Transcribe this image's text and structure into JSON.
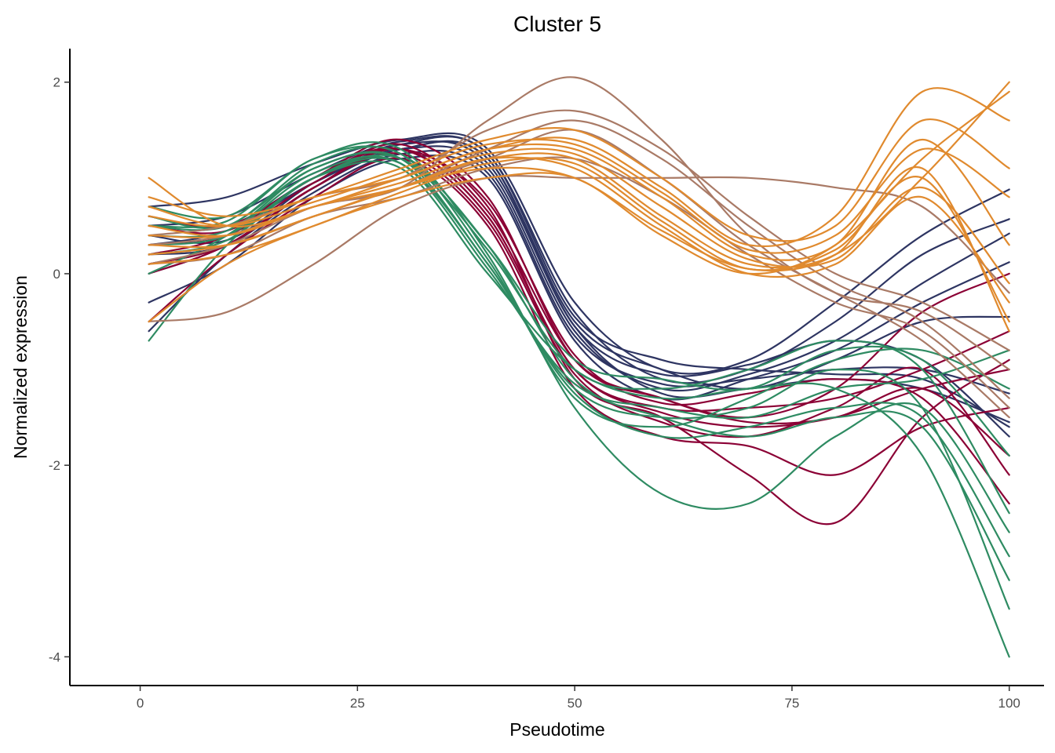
{
  "chart_data": {
    "type": "line",
    "title": "Cluster 5",
    "xlabel": "Pseudotime",
    "ylabel": "Normalized expression",
    "xlim": [
      -8,
      104
    ],
    "ylim": [
      -4.3,
      2.35
    ],
    "xticks": [
      0,
      25,
      50,
      75,
      100
    ],
    "yticks": [
      2,
      0,
      -2,
      -4
    ],
    "xtick_labels": [
      "0",
      "25",
      "50",
      "75",
      "100"
    ],
    "ytick_labels": [
      "2",
      "0",
      "-2",
      "-4"
    ],
    "grid": false,
    "legend": "none",
    "x": [
      1,
      10,
      20,
      30,
      40,
      50,
      60,
      70,
      80,
      90,
      100
    ],
    "groups": [
      {
        "name": "group-navy",
        "color": "#2E3562",
        "series": [
          {
            "name": "navy-1",
            "values": [
              0.7,
              0.8,
              1.15,
              1.4,
              1.3,
              -0.3,
              -1.0,
              -0.9,
              -0.3,
              0.4,
              0.88
            ]
          },
          {
            "name": "navy-2",
            "values": [
              0.5,
              0.6,
              1.05,
              1.38,
              1.25,
              -0.4,
              -1.1,
              -1.0,
              -0.5,
              0.2,
              0.57
            ]
          },
          {
            "name": "navy-3",
            "values": [
              0.3,
              0.45,
              0.95,
              1.3,
              1.1,
              -0.6,
              -1.2,
              -1.05,
              -0.7,
              -0.1,
              0.42
            ]
          },
          {
            "name": "navy-4",
            "values": [
              -0.3,
              0.1,
              0.8,
              1.2,
              1.0,
              -0.7,
              -1.3,
              -1.1,
              -0.8,
              -0.3,
              0.12
            ]
          },
          {
            "name": "navy-5",
            "values": [
              0.2,
              0.3,
              0.9,
              1.3,
              1.2,
              -0.5,
              -1.0,
              -1.2,
              -0.9,
              -0.5,
              -0.45
            ]
          },
          {
            "name": "navy-6",
            "values": [
              -0.6,
              0.2,
              0.85,
              1.25,
              1.05,
              -0.65,
              -1.15,
              -1.1,
              -1.0,
              -1.0,
              -1.25
            ]
          },
          {
            "name": "navy-7",
            "values": [
              0.6,
              0.5,
              1.0,
              1.35,
              1.15,
              -0.55,
              -1.25,
              -1.2,
              -1.1,
              -1.2,
              -1.55
            ]
          },
          {
            "name": "navy-8",
            "values": [
              0.0,
              0.3,
              0.9,
              1.3,
              1.2,
              -0.55,
              -1.05,
              -0.95,
              -0.7,
              -0.9,
              -1.7
            ]
          },
          {
            "name": "navy-9",
            "values": [
              0.4,
              0.35,
              0.95,
              1.35,
              1.25,
              -0.45,
              -0.9,
              -1.0,
              -1.05,
              -1.1,
              -1.6
            ]
          }
        ]
      },
      {
        "name": "group-crimson",
        "color": "#8B0035",
        "series": [
          {
            "name": "crimson-1",
            "values": [
              0.6,
              0.5,
              1.0,
              1.4,
              0.8,
              -0.9,
              -1.3,
              -1.5,
              -1.2,
              -0.4,
              0.0
            ]
          },
          {
            "name": "crimson-2",
            "values": [
              0.2,
              0.4,
              1.0,
              1.3,
              0.6,
              -1.0,
              -1.4,
              -1.4,
              -1.3,
              -1.0,
              -0.6
            ]
          },
          {
            "name": "crimson-3",
            "values": [
              0.1,
              0.3,
              0.9,
              1.3,
              0.7,
              -1.1,
              -1.5,
              -2.1,
              -2.6,
              -1.5,
              -0.9
            ]
          },
          {
            "name": "crimson-4",
            "values": [
              -0.5,
              0.2,
              0.8,
              1.2,
              0.5,
              -1.2,
              -1.7,
              -1.8,
              -2.1,
              -1.6,
              -1.4
            ]
          },
          {
            "name": "crimson-5",
            "values": [
              0.3,
              0.4,
              0.95,
              1.35,
              0.65,
              -0.9,
              -1.3,
              -1.55,
              -1.5,
              -1.2,
              -1.9
            ]
          },
          {
            "name": "crimson-6",
            "values": [
              0.0,
              0.3,
              0.9,
              1.25,
              0.55,
              -1.05,
              -1.55,
              -1.7,
              -1.4,
              -1.0,
              -2.1
            ]
          },
          {
            "name": "crimson-7",
            "values": [
              0.5,
              0.45,
              1.0,
              1.3,
              0.75,
              -0.85,
              -1.35,
              -1.25,
              -1.1,
              -1.3,
              -2.4
            ]
          },
          {
            "name": "crimson-8",
            "values": [
              0.1,
              0.3,
              0.9,
              1.3,
              0.6,
              -1.0,
              -1.45,
              -1.6,
              -1.5,
              -1.2,
              -1.0
            ]
          }
        ]
      },
      {
        "name": "group-green",
        "color": "#2E8B62",
        "series": [
          {
            "name": "green-1",
            "values": [
              0.7,
              0.6,
              1.2,
              1.3,
              0.2,
              -1.4,
              -2.3,
              -2.4,
              -1.7,
              -1.4,
              -2.7
            ]
          },
          {
            "name": "green-2",
            "values": [
              0.5,
              0.5,
              1.1,
              1.2,
              0.1,
              -1.2,
              -1.5,
              -1.4,
              -1.0,
              -1.4,
              -3.5
            ]
          },
          {
            "name": "green-3",
            "values": [
              0.3,
              0.4,
              1.0,
              1.1,
              0.0,
              -1.0,
              -1.3,
              -1.2,
              -1.2,
              -1.9,
              -4.0
            ]
          },
          {
            "name": "green-4",
            "values": [
              -0.7,
              0.3,
              1.0,
              1.2,
              0.3,
              -1.1,
              -1.5,
              -1.7,
              -1.5,
              -1.6,
              -3.2
            ]
          },
          {
            "name": "green-5",
            "values": [
              0.6,
              0.5,
              1.15,
              1.25,
              0.15,
              -1.3,
              -1.6,
              -1.3,
              -0.9,
              -0.8,
              -1.2
            ]
          },
          {
            "name": "green-6",
            "values": [
              0.0,
              0.4,
              1.05,
              1.15,
              0.05,
              -1.15,
              -1.4,
              -1.5,
              -1.2,
              -1.1,
              -0.8
            ]
          },
          {
            "name": "green-7",
            "values": [
              0.4,
              0.45,
              1.1,
              1.2,
              0.25,
              -1.0,
              -1.2,
              -1.0,
              -0.7,
              -1.0,
              -2.5
            ]
          },
          {
            "name": "green-8",
            "values": [
              0.2,
              0.35,
              1.0,
              1.15,
              0.1,
              -1.25,
              -1.7,
              -1.6,
              -1.4,
              -1.5,
              -2.95
            ]
          },
          {
            "name": "green-9",
            "values": [
              0.5,
              0.55,
              1.2,
              1.25,
              0.3,
              -0.9,
              -1.1,
              -1.2,
              -0.8,
              -0.9,
              -1.9
            ]
          }
        ]
      },
      {
        "name": "group-brown",
        "color": "#A97A66",
        "series": [
          {
            "name": "brown-1",
            "values": [
              0.1,
              0.3,
              0.7,
              0.9,
              1.6,
              2.05,
              1.4,
              0.4,
              -0.2,
              -0.4,
              -1.0
            ]
          },
          {
            "name": "brown-2",
            "values": [
              -0.5,
              -0.4,
              0.1,
              0.7,
              1.0,
              1.0,
              1.0,
              1.0,
              0.9,
              0.7,
              -0.2
            ]
          },
          {
            "name": "brown-3",
            "values": [
              0.3,
              0.4,
              0.7,
              0.9,
              1.3,
              1.6,
              1.2,
              0.5,
              -0.1,
              -0.5,
              -1.3
            ]
          },
          {
            "name": "brown-4",
            "values": [
              0.2,
              0.3,
              0.6,
              0.9,
              1.2,
              1.5,
              1.0,
              0.3,
              -0.2,
              -0.7,
              -1.5
            ]
          },
          {
            "name": "brown-5",
            "values": [
              0.4,
              0.5,
              0.8,
              1.0,
              1.5,
              1.7,
              1.3,
              0.6,
              0.0,
              -0.3,
              -0.8
            ]
          },
          {
            "name": "brown-6",
            "values": [
              0.1,
              0.2,
              0.6,
              0.8,
              1.1,
              1.2,
              0.8,
              0.2,
              -0.3,
              -0.6,
              -1.4
            ]
          }
        ]
      },
      {
        "name": "group-orange",
        "color": "#E08A2E",
        "series": [
          {
            "name": "orange-1",
            "values": [
              1.0,
              0.5,
              0.7,
              1.0,
              1.3,
              1.4,
              0.9,
              0.3,
              0.6,
              1.9,
              1.6
            ]
          },
          {
            "name": "orange-2",
            "values": [
              0.4,
              0.4,
              0.7,
              0.9,
              1.2,
              1.2,
              0.6,
              0.1,
              0.2,
              1.0,
              2.0
            ]
          },
          {
            "name": "orange-3",
            "values": [
              -0.5,
              0.1,
              0.5,
              0.8,
              1.0,
              1.0,
              0.4,
              0.0,
              0.3,
              1.2,
              1.9
            ]
          },
          {
            "name": "orange-4",
            "values": [
              0.6,
              0.5,
              0.8,
              1.0,
              1.3,
              1.3,
              0.8,
              0.2,
              0.3,
              1.4,
              0.3
            ]
          },
          {
            "name": "orange-5",
            "values": [
              0.3,
              0.3,
              0.6,
              0.9,
              1.2,
              1.1,
              0.5,
              0.0,
              0.1,
              0.8,
              -0.3
            ]
          },
          {
            "name": "orange-6",
            "values": [
              0.8,
              0.6,
              0.8,
              1.1,
              1.4,
              1.5,
              1.0,
              0.4,
              0.5,
              1.6,
              1.1
            ]
          },
          {
            "name": "orange-7",
            "values": [
              0.2,
              0.3,
              0.6,
              0.9,
              1.1,
              1.0,
              0.45,
              0.05,
              0.2,
              1.1,
              -0.6
            ]
          },
          {
            "name": "orange-8",
            "values": [
              0.5,
              0.4,
              0.7,
              0.95,
              1.25,
              1.25,
              0.7,
              0.15,
              0.15,
              0.9,
              -0.1
            ]
          },
          {
            "name": "orange-9",
            "values": [
              0.1,
              0.2,
              0.5,
              0.85,
              1.15,
              1.15,
              0.55,
              0.05,
              0.25,
              1.0,
              -0.5
            ]
          },
          {
            "name": "orange-10",
            "values": [
              0.7,
              0.5,
              0.75,
              1.05,
              1.35,
              1.35,
              0.85,
              0.25,
              0.4,
              1.3,
              0.8
            ]
          }
        ]
      }
    ]
  }
}
